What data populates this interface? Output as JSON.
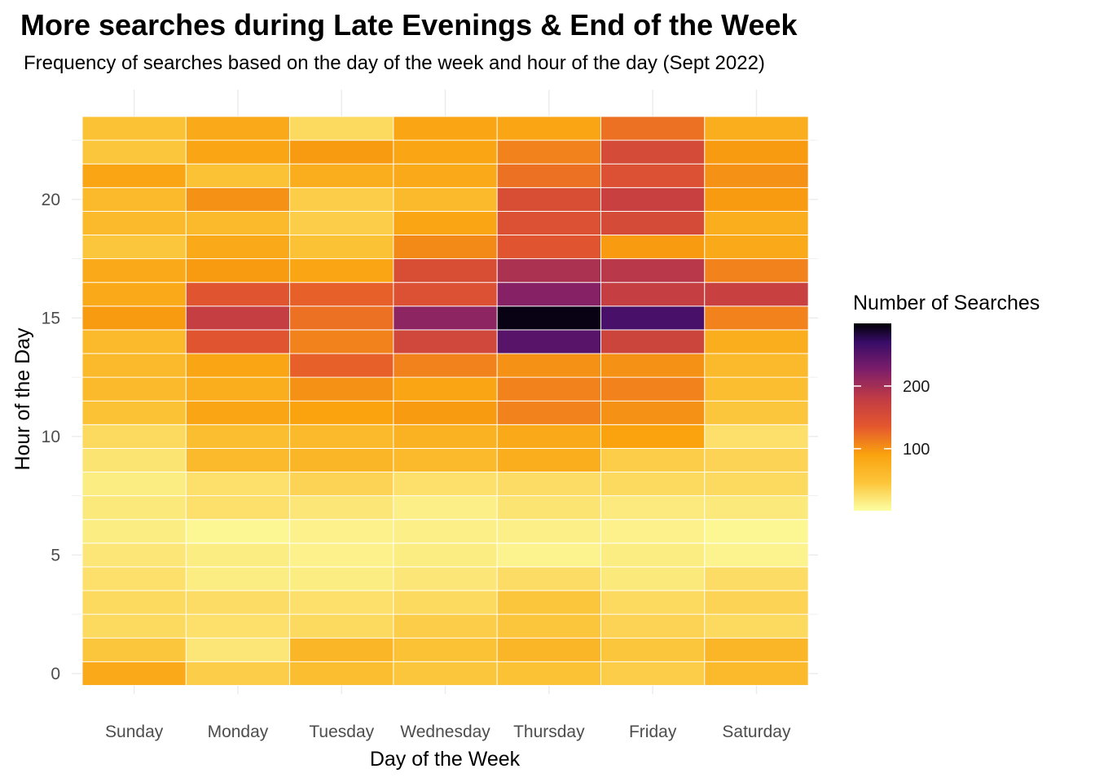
{
  "chart_data": {
    "type": "heatmap",
    "title": "More searches during Late Evenings & End of the Week",
    "subtitle": "Frequency of searches based on the day of the week and hour of the day (Sept 2022)",
    "xlabel": "Day of the Week",
    "ylabel": "Hour of the Day",
    "x_categories": [
      "Sunday",
      "Monday",
      "Tuesday",
      "Wednesday",
      "Thursday",
      "Friday",
      "Saturday"
    ],
    "y_hours": [
      0,
      1,
      2,
      3,
      4,
      5,
      6,
      7,
      8,
      9,
      10,
      11,
      12,
      13,
      14,
      15,
      16,
      17,
      18,
      19,
      20,
      21,
      22,
      23
    ],
    "y_ticks": [
      0,
      5,
      10,
      15,
      20
    ],
    "grid": true,
    "values_by_hour": [
      [
        80,
        40,
        55,
        45,
        50,
        40,
        60
      ],
      [
        45,
        20,
        65,
        50,
        65,
        45,
        65
      ],
      [
        30,
        25,
        30,
        40,
        45,
        35,
        30
      ],
      [
        30,
        28,
        25,
        30,
        45,
        30,
        35
      ],
      [
        25,
        15,
        15,
        20,
        28,
        18,
        28
      ],
      [
        20,
        15,
        12,
        15,
        10,
        15,
        10
      ],
      [
        15,
        8,
        12,
        13,
        13,
        12,
        8
      ],
      [
        18,
        25,
        20,
        13,
        22,
        17,
        18
      ],
      [
        15,
        25,
        35,
        25,
        28,
        30,
        30
      ],
      [
        22,
        60,
        65,
        60,
        75,
        40,
        35
      ],
      [
        30,
        55,
        60,
        70,
        80,
        90,
        25
      ],
      [
        50,
        85,
        90,
        95,
        110,
        100,
        45
      ],
      [
        60,
        75,
        100,
        85,
        110,
        110,
        55
      ],
      [
        60,
        85,
        130,
        110,
        100,
        100,
        60
      ],
      [
        60,
        140,
        110,
        160,
        250,
        165,
        75
      ],
      [
        95,
        175,
        120,
        215,
        295,
        260,
        110
      ],
      [
        80,
        140,
        130,
        145,
        220,
        175,
        170
      ],
      [
        80,
        95,
        85,
        150,
        195,
        185,
        110
      ],
      [
        45,
        80,
        50,
        105,
        140,
        95,
        80
      ],
      [
        60,
        60,
        40,
        85,
        145,
        155,
        75
      ],
      [
        60,
        100,
        40,
        60,
        150,
        170,
        95
      ],
      [
        85,
        50,
        75,
        80,
        120,
        145,
        100
      ],
      [
        45,
        85,
        95,
        85,
        110,
        155,
        95
      ],
      [
        50,
        80,
        30,
        85,
        85,
        120,
        75
      ]
    ],
    "legend": {
      "title": "Number of Searches",
      "ticks": [
        100,
        200
      ],
      "range": [
        1,
        300
      ],
      "palette": "inferno-reversed",
      "position": "right"
    },
    "colors": {
      "background": "#ffffff",
      "grid": "#ebebeb",
      "tile_border": "#ffffff"
    }
  }
}
